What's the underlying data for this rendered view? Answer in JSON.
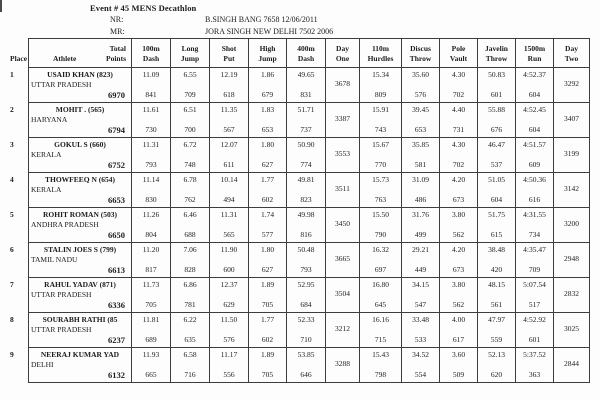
{
  "header": {
    "event_title": "Event # 45 MENS Decathlon",
    "nr_label": "NR:",
    "nr_value": "B.SINGH BANG 7658 12/06/2011",
    "mr_label": "MR:",
    "mr_value": "JORA SINGH NEW DELHI 7502 2006"
  },
  "table": {
    "col_headers": {
      "place": "Place",
      "athlete": "Athlete",
      "total": [
        "Total",
        "Points"
      ],
      "events": [
        [
          "100m",
          "Dash"
        ],
        [
          "Long",
          "Jump"
        ],
        [
          "Shot",
          "Put"
        ],
        [
          "High",
          "Jump"
        ],
        [
          "400m",
          "Dash"
        ],
        [
          "Day",
          "One"
        ],
        [
          "110m",
          "Hurdles"
        ],
        [
          "Discus",
          "Throw"
        ],
        [
          "Pole",
          "Vault"
        ],
        [
          "Javelin",
          "Throw"
        ],
        [
          "1500m",
          "Run"
        ],
        [
          "Day",
          "Two"
        ]
      ]
    },
    "rows": [
      {
        "place": "1",
        "name": "USAID KHAN (823)",
        "state": "UTTAR PRADESH",
        "total": "6970",
        "day1": {
          "marks": [
            "11.09",
            "6.55",
            "12.19",
            "1.86",
            "49.65"
          ],
          "points": [
            "841",
            "709",
            "618",
            "679",
            "831"
          ],
          "total": "3678"
        },
        "day2": {
          "marks": [
            "15.34",
            "35.60",
            "4.30",
            "50.83",
            "4:52.37"
          ],
          "points": [
            "809",
            "576",
            "702",
            "601",
            "604"
          ],
          "total": "3292"
        }
      },
      {
        "place": "2",
        "name": "MOHIT . (565)",
        "state": "HARYANA",
        "total": "6794",
        "day1": {
          "marks": [
            "11.61",
            "6.51",
            "11.35",
            "1.83",
            "51.71"
          ],
          "points": [
            "730",
            "700",
            "567",
            "653",
            "737"
          ],
          "total": "3387"
        },
        "day2": {
          "marks": [
            "15.91",
            "39.45",
            "4.40",
            "55.88",
            "4:52.45"
          ],
          "points": [
            "743",
            "653",
            "731",
            "676",
            "604"
          ],
          "total": "3407"
        }
      },
      {
        "place": "3",
        "name": "GOKUL S (660)",
        "state": "KERALA",
        "total": "6752",
        "day1": {
          "marks": [
            "11.31",
            "6.72",
            "12.07",
            "1.80",
            "50.90"
          ],
          "points": [
            "793",
            "748",
            "611",
            "627",
            "774"
          ],
          "total": "3553"
        },
        "day2": {
          "marks": [
            "15.67",
            "35.85",
            "4.30",
            "46.47",
            "4:51.57"
          ],
          "points": [
            "770",
            "581",
            "702",
            "537",
            "609"
          ],
          "total": "3199"
        }
      },
      {
        "place": "4",
        "name": "THOWFEEQ N (654)",
        "state": "KERALA",
        "total": "6653",
        "day1": {
          "marks": [
            "11.14",
            "6.78",
            "10.14",
            "1.77",
            "49.81"
          ],
          "points": [
            "830",
            "762",
            "494",
            "602",
            "823"
          ],
          "total": "3511"
        },
        "day2": {
          "marks": [
            "15.73",
            "31.09",
            "4.20",
            "51.05",
            "4:50.36"
          ],
          "points": [
            "763",
            "486",
            "673",
            "604",
            "616"
          ],
          "total": "3142"
        }
      },
      {
        "place": "5",
        "name": "ROHIT ROMAN (503)",
        "state": "ANDHRA PRADESH",
        "total": "6650",
        "day1": {
          "marks": [
            "11.26",
            "6.46",
            "11.31",
            "1.74",
            "49.98"
          ],
          "points": [
            "804",
            "688",
            "565",
            "577",
            "816"
          ],
          "total": "3450"
        },
        "day2": {
          "marks": [
            "15.50",
            "31.76",
            "3.80",
            "51.75",
            "4:31.55"
          ],
          "points": [
            "790",
            "499",
            "562",
            "615",
            "734"
          ],
          "total": "3200"
        }
      },
      {
        "place": "6",
        "name": "STALIN JOES S (799)",
        "state": "TAMIL NADU",
        "total": "6613",
        "day1": {
          "marks": [
            "11.20",
            "7.06",
            "11.90",
            "1.80",
            "50.48"
          ],
          "points": [
            "817",
            "828",
            "600",
            "627",
            "793"
          ],
          "total": "3665"
        },
        "day2": {
          "marks": [
            "16.32",
            "29.21",
            "4.20",
            "38.48",
            "4:35.47"
          ],
          "points": [
            "697",
            "449",
            "673",
            "420",
            "709"
          ],
          "total": "2948"
        }
      },
      {
        "place": "7",
        "name": "RAHUL YADAV (871)",
        "state": "UTTAR PRADESH",
        "total": "6336",
        "day1": {
          "marks": [
            "11.73",
            "6.86",
            "12.37",
            "1.89",
            "52.95"
          ],
          "points": [
            "705",
            "781",
            "629",
            "705",
            "684"
          ],
          "total": "3504"
        },
        "day2": {
          "marks": [
            "16.80",
            "34.15",
            "3.80",
            "48.15",
            "5:07.54"
          ],
          "points": [
            "645",
            "547",
            "562",
            "561",
            "517"
          ],
          "total": "2832"
        }
      },
      {
        "place": "8",
        "name": "SOURABH RATHI (85",
        "state": "UTTAR PRADESH",
        "total": "6237",
        "day1": {
          "marks": [
            "11.81",
            "6.22",
            "11.50",
            "1.77",
            "52.33"
          ],
          "points": [
            "689",
            "635",
            "576",
            "602",
            "710"
          ],
          "total": "3212"
        },
        "day2": {
          "marks": [
            "16.16",
            "33.48",
            "4.00",
            "47.97",
            "4:52.92"
          ],
          "points": [
            "715",
            "533",
            "617",
            "559",
            "601"
          ],
          "total": "3025"
        }
      },
      {
        "place": "9",
        "name": "NEERAJ KUMAR YAD",
        "state": "DELHI",
        "total": "6132",
        "day1": {
          "marks": [
            "11.93",
            "6.58",
            "11.17",
            "1.89",
            "53.85"
          ],
          "points": [
            "665",
            "716",
            "556",
            "705",
            "646"
          ],
          "total": "3288"
        },
        "day2": {
          "marks": [
            "15.43",
            "34.52",
            "3.60",
            "52.13",
            "5:37.52"
          ],
          "points": [
            "798",
            "554",
            "509",
            "620",
            "363"
          ],
          "total": "2844"
        }
      }
    ]
  }
}
